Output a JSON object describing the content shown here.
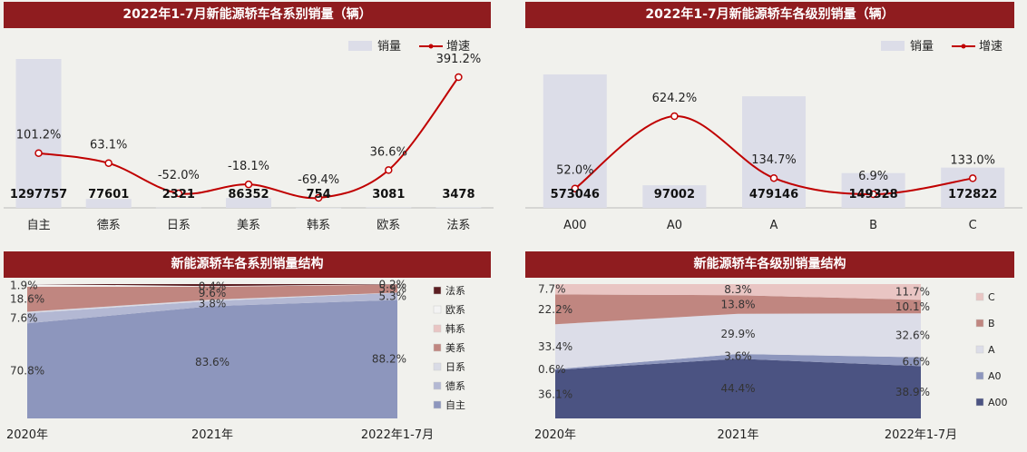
{
  "legend": {
    "bar": "销量",
    "line": "增速"
  },
  "colors": {
    "banner": "#8f1c1f",
    "bar": "#dcdde8",
    "line": "#c00000"
  },
  "chart_data": [
    {
      "id": "series-sales",
      "type": "bar+line",
      "title": "2022年1-7月新能源轿车各系别销量（辆）",
      "categories": [
        "自主",
        "德系",
        "日系",
        "美系",
        "韩系",
        "欧系",
        "法系"
      ],
      "values": [
        1297757,
        77601,
        2321,
        86352,
        754,
        3081,
        3478
      ],
      "growth": [
        101.2,
        63.1,
        -52.0,
        -18.1,
        -69.4,
        36.6,
        391.2
      ],
      "growth_labels": [
        "101.2%",
        "63.1%",
        "-52.0%",
        "-18.1%",
        "-69.4%",
        "36.6%",
        "391.2%"
      ],
      "value_labels": [
        "1297757",
        "77601",
        "2321",
        "86352",
        "754",
        "3081",
        "3478"
      ]
    },
    {
      "id": "level-sales",
      "type": "bar+line",
      "title": "2022年1-7月新能源轿车各级别销量（辆）",
      "categories": [
        "A00",
        "A0",
        "A",
        "B",
        "C"
      ],
      "values": [
        573046,
        97002,
        479146,
        149328,
        172822
      ],
      "growth": [
        52.0,
        624.2,
        134.7,
        6.9,
        133.0
      ],
      "growth_labels": [
        "52.0%",
        "624.2%",
        "134.7%",
        "6.9%",
        "133.0%"
      ],
      "value_labels": [
        "573046",
        "97002",
        "479146",
        "149328",
        "172822"
      ]
    },
    {
      "id": "series-structure",
      "type": "area",
      "title": "新能源轿车各系别销量结构",
      "x": [
        "2020年",
        "2021年",
        "2022年1-7月"
      ],
      "series": [
        {
          "name": "自主",
          "values": [
            70.8,
            83.6,
            88.2
          ],
          "labels": [
            "70.8%",
            "83.6%",
            "88.2%"
          ],
          "color": "#8d96bd"
        },
        {
          "name": "德系",
          "values": [
            7.6,
            3.8,
            5.3
          ],
          "labels": [
            "7.6%",
            "3.8%",
            "5.3%"
          ],
          "color": "#b3b8d3"
        },
        {
          "name": "日系",
          "values": [
            1.0,
            1.0,
            0.2
          ],
          "labels": [
            "",
            "",
            ""
          ],
          "color": "#d9dbe6"
        },
        {
          "name": "美系",
          "values": [
            18.6,
            9.6,
            5.9
          ],
          "labels": [
            "18.6%",
            "9.6%",
            "5.9%"
          ],
          "color": "#c08680"
        },
        {
          "name": "韩系",
          "values": [
            0.1,
            0.1,
            0.05
          ],
          "labels": [
            "",
            "",
            ""
          ],
          "color": "#e9c5c3"
        },
        {
          "name": "欧系",
          "values": [
            1.9,
            0.4,
            0.2
          ],
          "labels": [
            "1.9%",
            "0.4%",
            "0.2%"
          ],
          "color": "#f3f3f3"
        },
        {
          "name": "法系",
          "values": [
            0.0,
            1.5,
            0.15
          ],
          "labels": [
            "",
            "",
            ""
          ],
          "color": "#5b1e22"
        }
      ]
    },
    {
      "id": "level-structure",
      "type": "area",
      "title": "新能源轿车各级别销量结构",
      "x": [
        "2020年",
        "2021年",
        "2022年1-7月"
      ],
      "series": [
        {
          "name": "A00",
          "values": [
            36.1,
            44.4,
            38.9
          ],
          "labels": [
            "36.1%",
            "44.4%",
            "38.9%"
          ],
          "color": "#4b5382"
        },
        {
          "name": "A0",
          "values": [
            0.6,
            3.6,
            6.6
          ],
          "labels": [
            "0.6%",
            "3.6%",
            "6.6%"
          ],
          "color": "#8d96bd"
        },
        {
          "name": "A",
          "values": [
            33.4,
            29.9,
            32.6
          ],
          "labels": [
            "33.4%",
            "29.9%",
            "32.6%"
          ],
          "color": "#dcdde8"
        },
        {
          "name": "B",
          "values": [
            22.2,
            13.8,
            10.1
          ],
          "labels": [
            "22.2%",
            "13.8%",
            "10.1%"
          ],
          "color": "#c08680"
        },
        {
          "name": "C",
          "values": [
            7.7,
            8.3,
            11.7
          ],
          "labels": [
            "7.7%",
            "8.3%",
            "11.7%"
          ],
          "color": "#e9c5c3"
        }
      ]
    }
  ]
}
